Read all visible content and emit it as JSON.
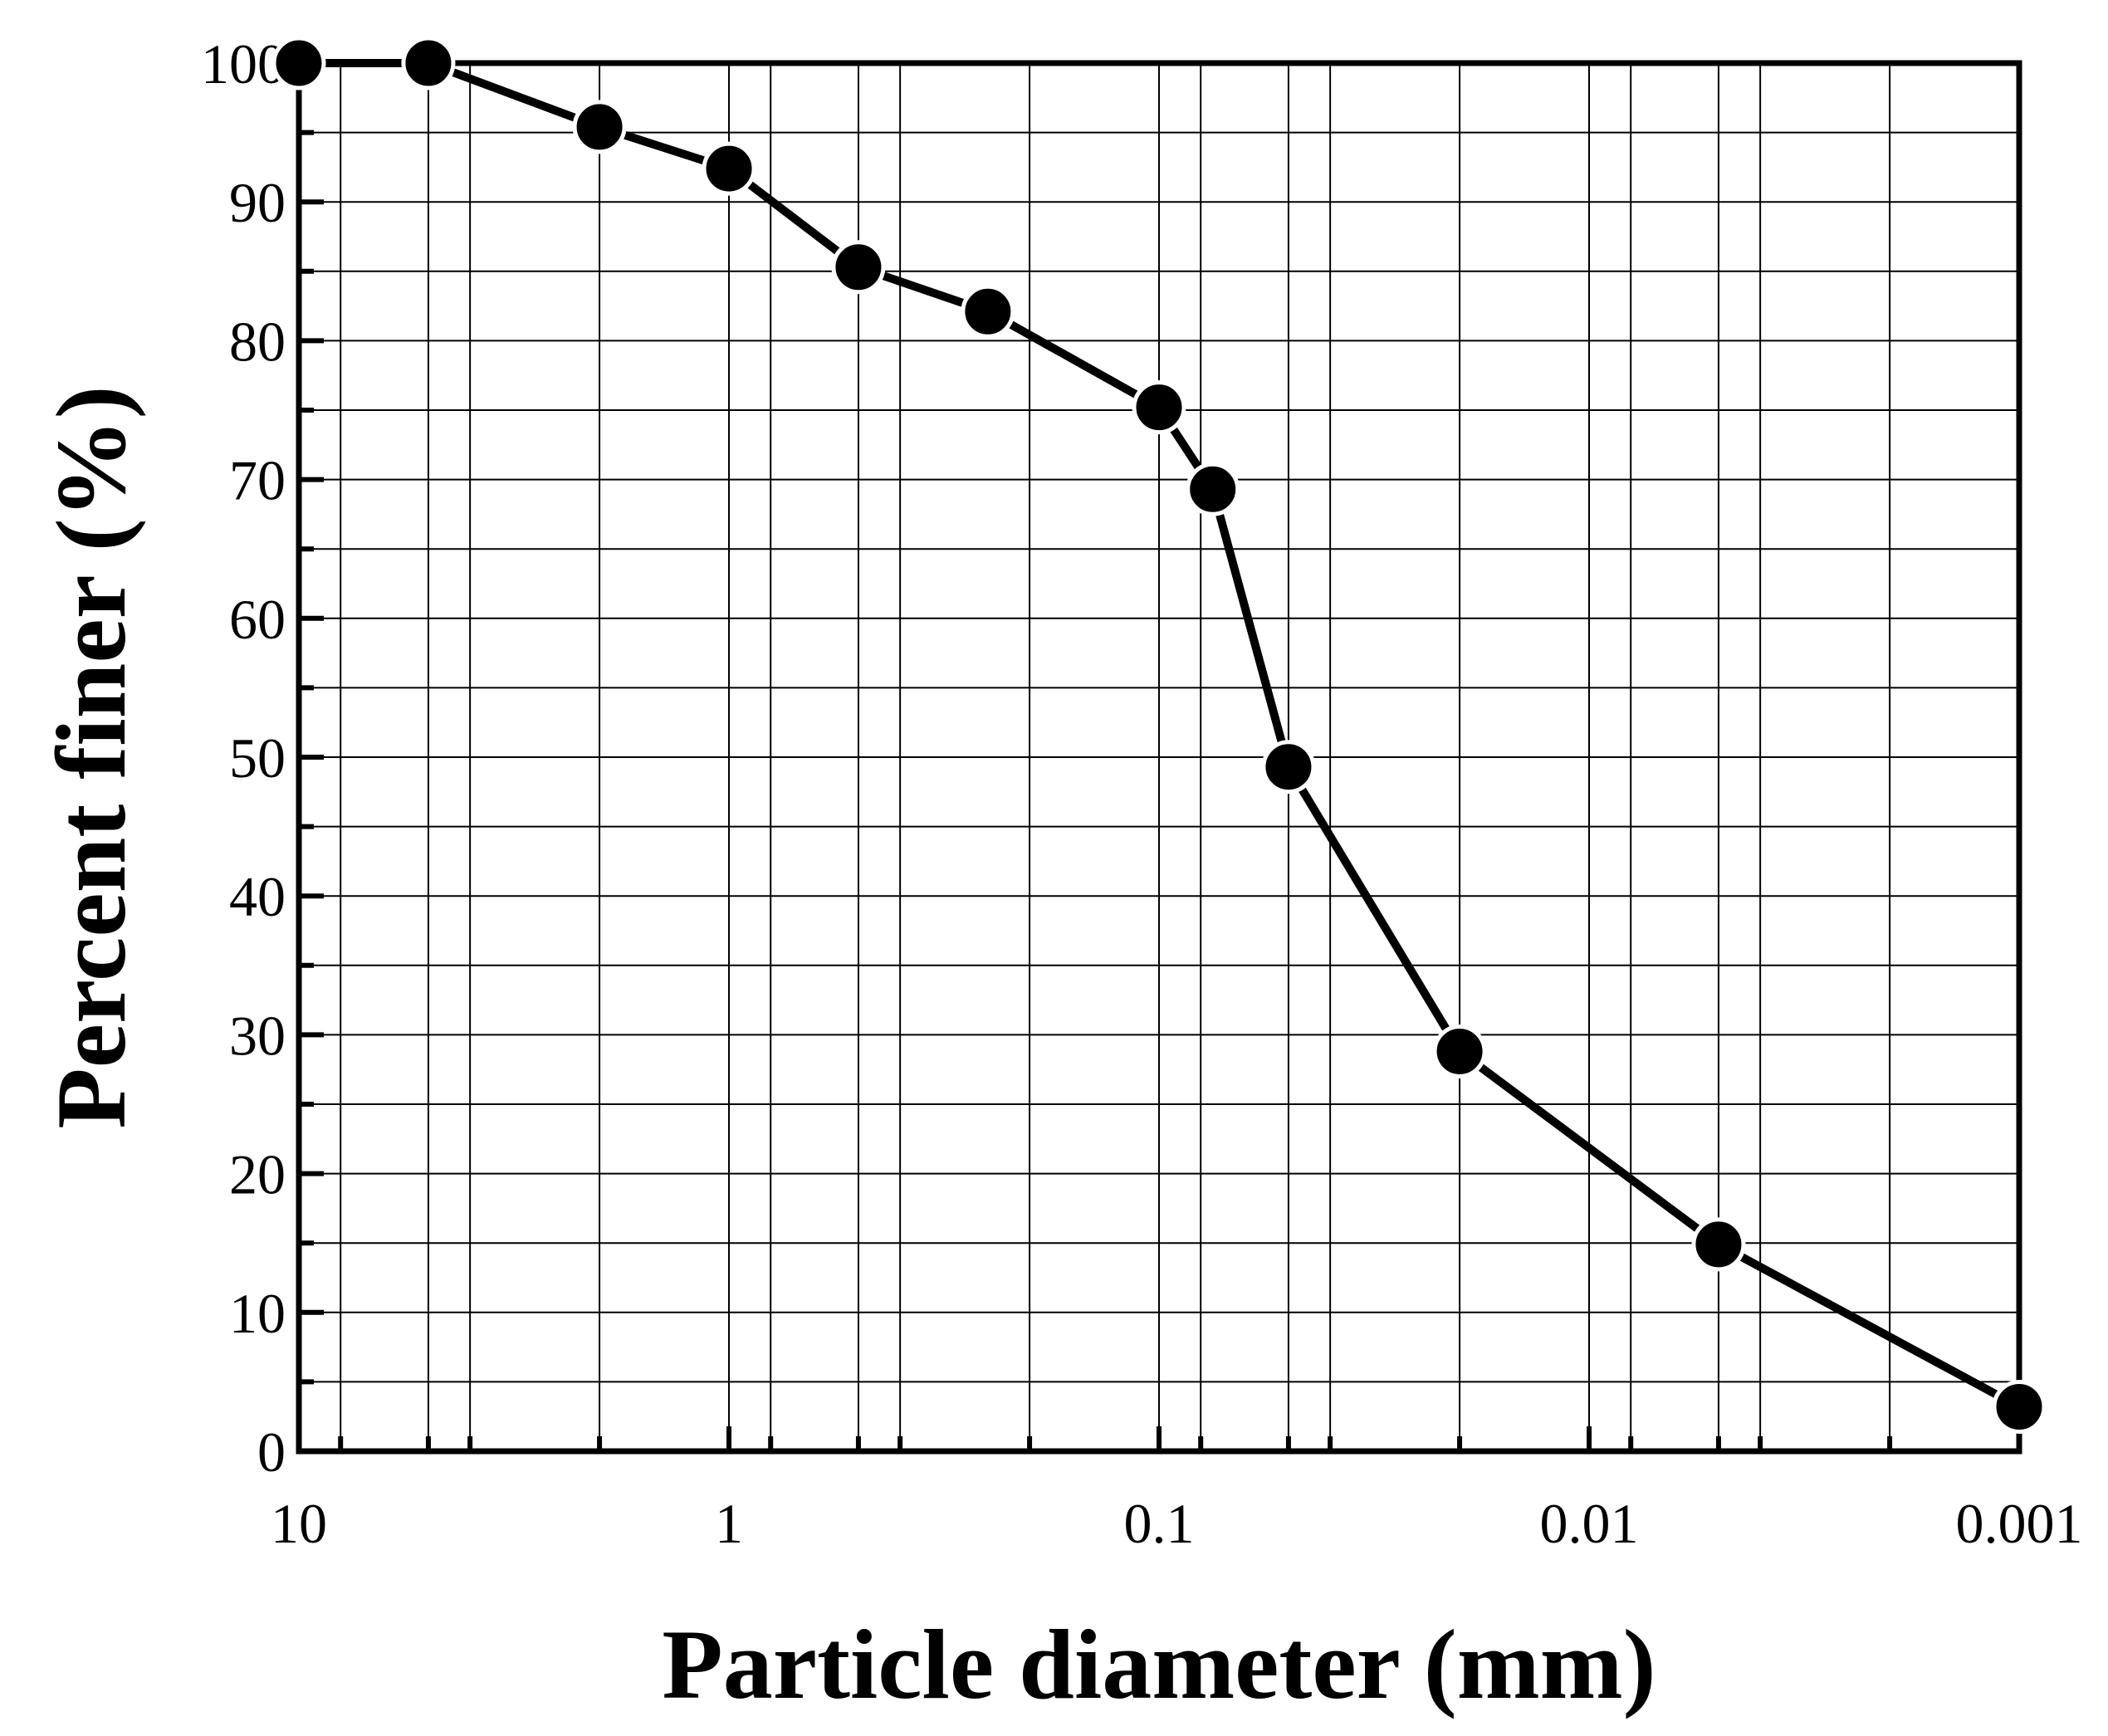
{
  "chart_data": {
    "type": "line",
    "xlabel": "Particle diameter (mm)",
    "ylabel": "Percent finer (%)",
    "x_scale": "log",
    "x_reversed": true,
    "xlim": [
      10,
      0.001
    ],
    "ylim": [
      0,
      100
    ],
    "x_ticks": [
      10,
      1,
      0.1,
      0.01,
      0.001
    ],
    "x_tick_labels": [
      "10",
      "1",
      "0.1",
      "0.01",
      "0.001"
    ],
    "y_ticks": [
      0,
      10,
      20,
      30,
      40,
      50,
      60,
      70,
      80,
      90,
      100
    ],
    "y_tick_labels": [
      "0",
      "10",
      "20",
      "30",
      "40",
      "50",
      "60",
      "70",
      "80",
      "90",
      "100"
    ],
    "grid": true,
    "marker": "filled-circle",
    "line_color": "#000000",
    "series": [
      {
        "x": [
          10,
          5,
          2,
          1,
          0.5,
          0.25,
          0.1,
          0.075,
          0.05,
          0.02,
          0.005,
          0.001
        ],
        "y": [
          100,
          100,
          95.4,
          92.4,
          85.3,
          82.1,
          75.2,
          69.3,
          49.3,
          28.8,
          14.9,
          3.2
        ]
      }
    ]
  }
}
